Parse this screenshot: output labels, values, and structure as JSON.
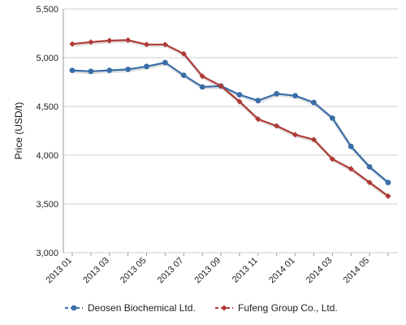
{
  "chart_data": {
    "type": "line",
    "title": "",
    "xlabel": "",
    "ylabel": "Price (USD/t)",
    "ylim": [
      3000,
      5500
    ],
    "yticks": [
      3000,
      3500,
      4000,
      4500,
      5000,
      5500
    ],
    "ytick_labels": [
      "3,000",
      "3,500",
      "4,000",
      "4,500",
      "5,000",
      "5,500"
    ],
    "categories": [
      "2013 01",
      "2013 02",
      "2013 03",
      "2013 04",
      "2013 05",
      "2013 06",
      "2013 07",
      "2013 08",
      "2013 09",
      "2013 10",
      "2013 11",
      "2013 12",
      "2014 01",
      "2014 02",
      "2014 03",
      "2014 04",
      "2014 05",
      "2014 06"
    ],
    "xtick_labels": [
      "2013 01",
      "2013 03",
      "2013 05",
      "2013 07",
      "2013 09",
      "2013 11",
      "2014 01",
      "2014 03",
      "2014 05"
    ],
    "grid": true,
    "legend_position": "bottom",
    "series": [
      {
        "name": "Deosen Biochemical Ltd.",
        "color": "#3a6ea8",
        "marker": "circle",
        "values": [
          4870,
          4860,
          4870,
          4880,
          4910,
          4950,
          4820,
          4700,
          4710,
          4620,
          4560,
          4630,
          4610,
          4540,
          4380,
          4090,
          3880,
          3720
        ]
      },
      {
        "name": "Fufeng Group Co., Ltd.",
        "color": "#b03a35",
        "marker": "diamond",
        "values": [
          5140,
          5160,
          5175,
          5180,
          5135,
          5135,
          5040,
          4810,
          4710,
          4550,
          4370,
          4300,
          4210,
          4160,
          3960,
          3860,
          3720,
          3580
        ]
      }
    ]
  }
}
